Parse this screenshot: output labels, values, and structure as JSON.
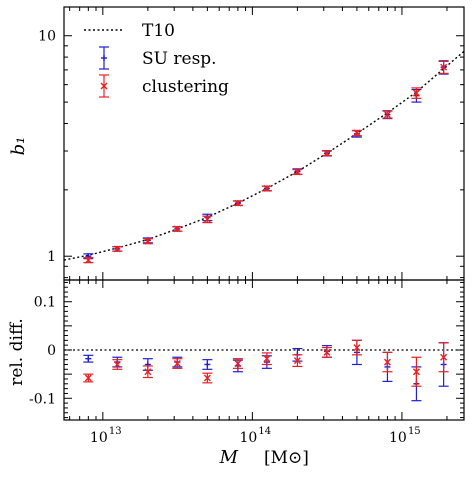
{
  "chart_data": [
    {
      "type": "scatter",
      "panel": "top",
      "ylabel": "b₁",
      "x_scale": "log",
      "y_scale": "log",
      "xlim": [
        5500000000000.0,
        2600000000000000.0
      ],
      "ylim": [
        0.78,
        13.5
      ],
      "ytick_labels": [
        {
          "value": 1,
          "label": "1"
        },
        {
          "value": 10,
          "label": "10"
        }
      ],
      "legend": {
        "position": "top-left",
        "entries": [
          {
            "label": "T10",
            "style": "dotted-line",
            "color": "#000000"
          },
          {
            "label": "SU resp.",
            "style": "errorbar-plus",
            "color": "#1f1fd6"
          },
          {
            "label": "clustering",
            "style": "errorbar-cross",
            "color": "#e82020"
          }
        ]
      },
      "series": [
        {
          "name": "SU resp.",
          "color": "#1f1fd6",
          "marker": "plus",
          "x": [
            8000000000000.0,
            12500000000000.0,
            20000000000000.0,
            31500000000000.0,
            50000000000000.0,
            80000000000000.0,
            125000000000000.0,
            200000000000000.0,
            315000000000000.0,
            500000000000000.0,
            800000000000000.0,
            1250000000000000.0,
            1900000000000000.0
          ],
          "y": [
            1.0,
            1.08,
            1.18,
            1.33,
            1.5,
            1.74,
            2.03,
            2.42,
            2.93,
            3.59,
            4.39,
            5.35,
            7.2
          ],
          "yerr": [
            0.025,
            0.025,
            0.03,
            0.03,
            0.05,
            0.04,
            0.05,
            0.07,
            0.08,
            0.12,
            0.18,
            0.35,
            0.5
          ]
        },
        {
          "name": "clustering",
          "color": "#e82020",
          "marker": "cross",
          "x": [
            8000000000000.0,
            12500000000000.0,
            20000000000000.0,
            31500000000000.0,
            50000000000000.0,
            80000000000000.0,
            125000000000000.0,
            200000000000000.0,
            315000000000000.0,
            500000000000000.0,
            800000000000000.0,
            1250000000000000.0,
            1900000000000000.0
          ],
          "y": [
            0.96,
            1.08,
            1.17,
            1.33,
            1.47,
            1.74,
            2.03,
            2.41,
            2.93,
            3.62,
            4.39,
            5.5,
            7.2
          ],
          "yerr": [
            0.025,
            0.025,
            0.03,
            0.03,
            0.05,
            0.04,
            0.05,
            0.06,
            0.07,
            0.1,
            0.16,
            0.3,
            0.45
          ]
        },
        {
          "name": "T10",
          "style": "dotted",
          "color": "#000000",
          "x": [
            5500000000000.0,
            8000000000000.0,
            12500000000000.0,
            20000000000000.0,
            31500000000000.0,
            50000000000000.0,
            80000000000000.0,
            125000000000000.0,
            200000000000000.0,
            315000000000000.0,
            500000000000000.0,
            800000000000000.0,
            1250000000000000.0,
            2000000000000000.0,
            2600000000000000.0
          ],
          "y": [
            0.96,
            1.01,
            1.09,
            1.19,
            1.33,
            1.5,
            1.74,
            2.03,
            2.42,
            2.93,
            3.6,
            4.47,
            5.55,
            7.3,
            8.5
          ]
        }
      ]
    },
    {
      "type": "scatter",
      "panel": "bottom",
      "ylabel": "rel. diff.",
      "xlabel": "M",
      "xlabel_unit": "[M⊙]",
      "x_scale": "log",
      "ylim": [
        -0.145,
        0.145
      ],
      "ytick_labels": [
        {
          "value": 0.1,
          "label": "0.1"
        },
        {
          "value": 0,
          "label": "0"
        },
        {
          "value": -0.1,
          "label": "-0.1"
        }
      ],
      "xtick_labels": [
        {
          "value": 10000000000000.0,
          "label": "10",
          "exp": "13"
        },
        {
          "value": 100000000000000.0,
          "label": "10",
          "exp": "14"
        },
        {
          "value": 1000000000000000.0,
          "label": "10",
          "exp": "15"
        }
      ],
      "reference_line": {
        "y": 0,
        "style": "dotted"
      },
      "series": [
        {
          "name": "SU resp.",
          "color": "#1f1fd6",
          "marker": "plus",
          "x": [
            8000000000000.0,
            12500000000000.0,
            20000000000000.0,
            31500000000000.0,
            50000000000000.0,
            80000000000000.0,
            125000000000000.0,
            200000000000000.0,
            315000000000000.0,
            500000000000000.0,
            800000000000000.0,
            1250000000000000.0,
            1900000000000000.0
          ],
          "y": [
            -0.018,
            -0.025,
            -0.03,
            -0.025,
            -0.03,
            -0.033,
            -0.025,
            -0.01,
            -0.003,
            -0.005,
            -0.035,
            -0.07,
            -0.03
          ],
          "yerr": [
            0.007,
            0.01,
            0.012,
            0.01,
            0.01,
            0.012,
            0.013,
            0.013,
            0.012,
            0.025,
            0.03,
            0.035,
            0.045
          ]
        },
        {
          "name": "clustering",
          "color": "#e82020",
          "marker": "cross",
          "x": [
            8000000000000.0,
            12500000000000.0,
            20000000000000.0,
            31500000000000.0,
            50000000000000.0,
            80000000000000.0,
            125000000000000.0,
            200000000000000.0,
            315000000000000.0,
            500000000000000.0,
            800000000000000.0,
            1250000000000000.0,
            1900000000000000.0
          ],
          "y": [
            -0.058,
            -0.03,
            -0.045,
            -0.028,
            -0.058,
            -0.028,
            -0.018,
            -0.022,
            -0.005,
            0.005,
            -0.025,
            -0.045,
            -0.015
          ],
          "yerr": [
            0.008,
            0.01,
            0.012,
            0.01,
            0.01,
            0.01,
            0.012,
            0.012,
            0.01,
            0.015,
            0.02,
            0.03,
            0.03
          ]
        }
      ]
    }
  ]
}
